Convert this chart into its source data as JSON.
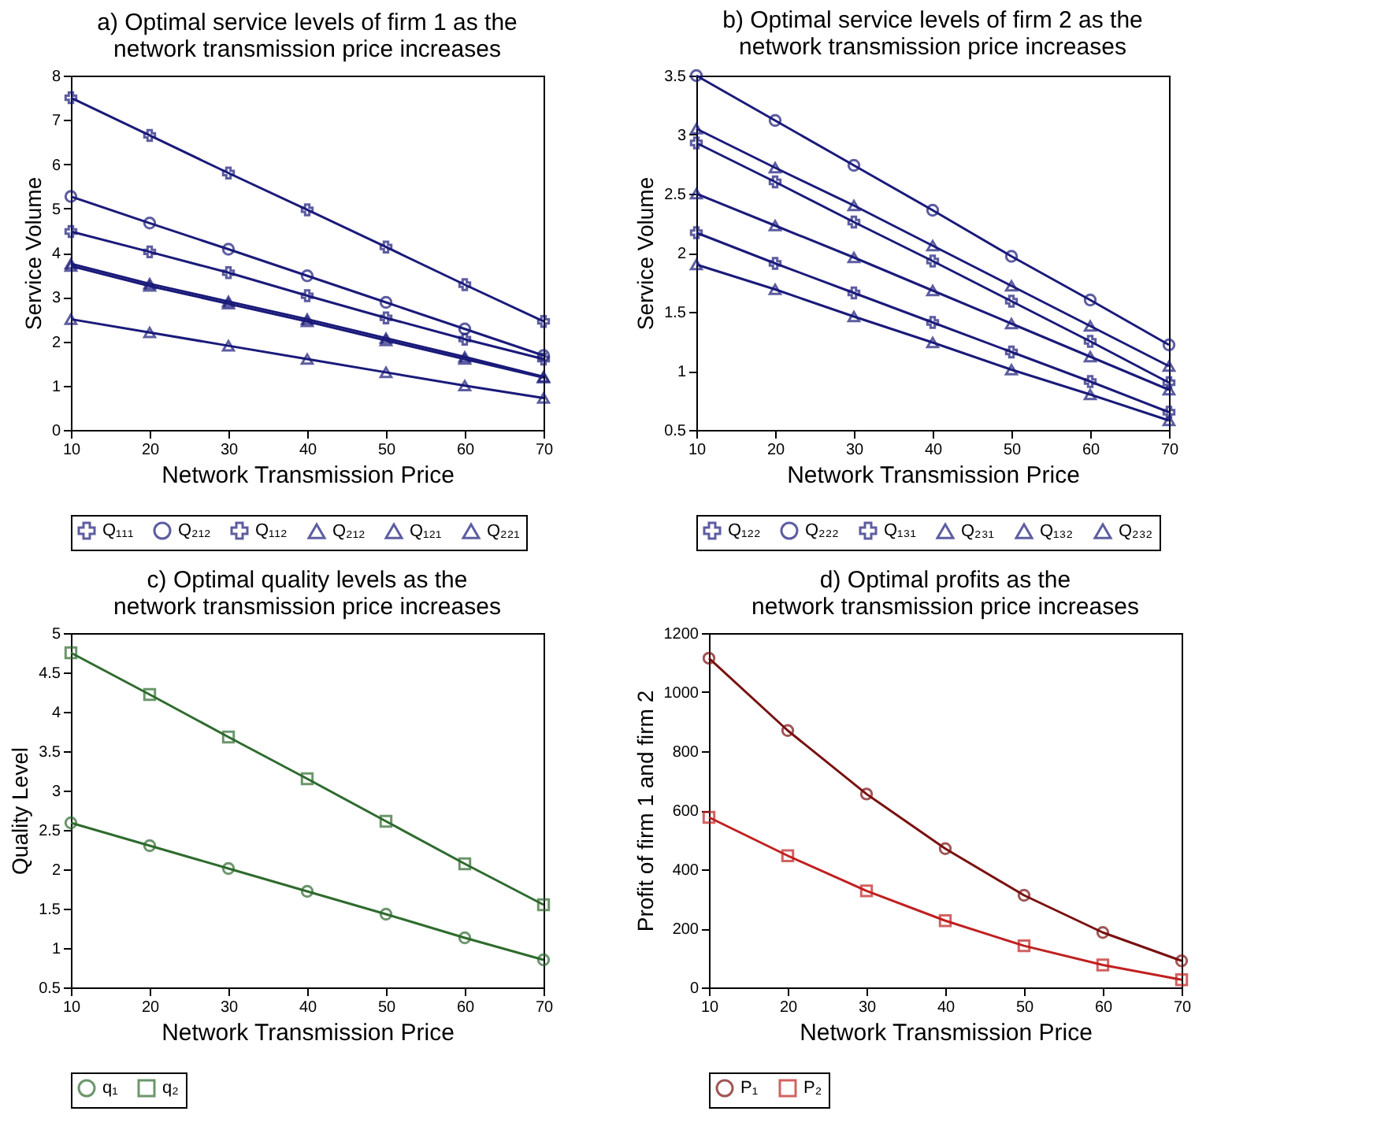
{
  "chart_data": [
    {
      "type": "line",
      "title": [
        "a) Optimal service levels of firm 1 as the",
        "network transmission price increases"
      ],
      "xlabel": "Network Transmission Price",
      "ylabel": "Service Volume",
      "x": [
        10,
        20,
        30,
        40,
        50,
        60,
        70
      ],
      "xlim": [
        10,
        70
      ],
      "xticks": [
        10,
        20,
        30,
        40,
        50,
        60,
        70
      ],
      "ylim": [
        0,
        8
      ],
      "yticks": [
        0,
        1,
        2,
        3,
        4,
        5,
        6,
        7,
        8
      ],
      "grid": false,
      "legend": "bottom",
      "series": [
        {
          "name": "Q₁₁₁",
          "color": "#1a1a7a",
          "marker": "cross",
          "values": [
            7.5,
            6.65,
            5.8,
            4.97,
            4.13,
            3.28,
            2.45
          ]
        },
        {
          "name": "Q₂₁₂",
          "color": "#1a1a7a",
          "marker": "circle",
          "values": [
            5.27,
            4.67,
            4.08,
            3.48,
            2.88,
            2.28,
            1.68
          ]
        },
        {
          "name": "Q₁₁₂",
          "color": "#1a1a7a",
          "marker": "cross",
          "values": [
            4.48,
            4.02,
            3.55,
            3.03,
            2.53,
            2.05,
            1.6
          ]
        },
        {
          "name": "Q₂₁₂",
          "color": "#1a1a7a",
          "marker": "triangle",
          "values": [
            2.5,
            2.2,
            1.9,
            1.6,
            1.3,
            1.0,
            0.72
          ]
        },
        {
          "name": "Q₁₂₁",
          "color": "#1a1a7a",
          "marker": "triangle",
          "values": [
            3.7,
            3.25,
            2.85,
            2.45,
            2.02,
            1.6,
            1.18
          ]
        },
        {
          "name": "Q₂₂₁",
          "color": "#1a1a7a",
          "marker": "triangle",
          "values": [
            3.75,
            3.3,
            2.9,
            2.5,
            2.07,
            1.65,
            1.2
          ]
        }
      ]
    },
    {
      "type": "line",
      "title": [
        "b) Optimal service levels of firm 2 as the",
        "network transmission price increases"
      ],
      "xlabel": "Network Transmission Price",
      "ylabel": "Service Volume",
      "x": [
        10,
        20,
        30,
        40,
        50,
        60,
        70
      ],
      "xlim": [
        10,
        70
      ],
      "xticks": [
        10,
        20,
        30,
        40,
        50,
        60,
        70
      ],
      "ylim": [
        0.5,
        3.5
      ],
      "yticks": [
        0.5,
        1,
        1.5,
        2,
        2.5,
        3,
        3.5
      ],
      "grid": false,
      "legend": "bottom",
      "series": [
        {
          "name": "Q₁₂₂",
          "color": "#1a1a7a",
          "marker": "cross",
          "values": [
            2.17,
            1.91,
            1.66,
            1.41,
            1.16,
            0.91,
            0.65
          ]
        },
        {
          "name": "Q₂₂₂",
          "color": "#1a1a7a",
          "marker": "circle",
          "values": [
            3.5,
            3.12,
            2.74,
            2.36,
            1.97,
            1.6,
            1.22
          ]
        },
        {
          "name": "Q₁₃₁",
          "color": "#1a1a7a",
          "marker": "cross",
          "values": [
            2.93,
            2.6,
            2.26,
            1.93,
            1.59,
            1.25,
            0.9
          ]
        },
        {
          "name": "Q₂₃₁",
          "color": "#1a1a7a",
          "marker": "triangle",
          "values": [
            3.05,
            2.72,
            2.4,
            2.06,
            1.72,
            1.38,
            1.04
          ]
        },
        {
          "name": "Q₁₃₂",
          "color": "#1a1a7a",
          "marker": "triangle",
          "values": [
            2.5,
            2.23,
            1.96,
            1.68,
            1.4,
            1.12,
            0.84
          ]
        },
        {
          "name": "Q₂₃₂",
          "color": "#1a1a7a",
          "marker": "triangle",
          "values": [
            1.9,
            1.69,
            1.46,
            1.24,
            1.01,
            0.8,
            0.58
          ]
        }
      ]
    },
    {
      "type": "line",
      "title": [
        "c) Optimal quality levels as the",
        "network transmission price increases"
      ],
      "xlabel": "Network Transmission Price",
      "ylabel": "Quality Level",
      "x": [
        10,
        20,
        30,
        40,
        50,
        60,
        70
      ],
      "xlim": [
        10,
        70
      ],
      "xticks": [
        10,
        20,
        30,
        40,
        50,
        60,
        70
      ],
      "ylim": [
        0.5,
        5
      ],
      "yticks": [
        0.5,
        1,
        1.5,
        2,
        2.5,
        3,
        3.5,
        4,
        4.5,
        5
      ],
      "grid": false,
      "legend": "bottom",
      "series": [
        {
          "name": "q₁",
          "color": "#2e6b2e",
          "marker": "circle",
          "values": [
            2.59,
            2.3,
            2.01,
            1.72,
            1.43,
            1.13,
            0.85
          ]
        },
        {
          "name": "q₂",
          "color": "#2e6b2e",
          "marker": "square",
          "values": [
            4.75,
            4.22,
            3.68,
            3.15,
            2.61,
            2.07,
            1.55
          ]
        }
      ]
    },
    {
      "type": "line",
      "title": [
        "d) Optimal profits as the",
        "network transmission price increases"
      ],
      "xlabel": "Network Transmission Price",
      "ylabel": "Profit of firm 1 and firm 2",
      "x": [
        10,
        20,
        30,
        40,
        50,
        60,
        70
      ],
      "xlim": [
        10,
        70
      ],
      "xticks": [
        10,
        20,
        30,
        40,
        50,
        60,
        70
      ],
      "ylim": [
        0,
        1200
      ],
      "yticks": [
        0,
        200,
        400,
        600,
        800,
        1000,
        1200
      ],
      "grid": false,
      "legend": "bottom",
      "series": [
        {
          "name": "P₁",
          "color": "#7a1010",
          "marker": "circle",
          "values": [
            1115,
            870,
            655,
            470,
            312,
            186,
            90
          ]
        },
        {
          "name": "P₂",
          "color": "#c02020",
          "marker": "square",
          "values": [
            576,
            446,
            327,
            226,
            141,
            76,
            26
          ]
        }
      ]
    }
  ]
}
